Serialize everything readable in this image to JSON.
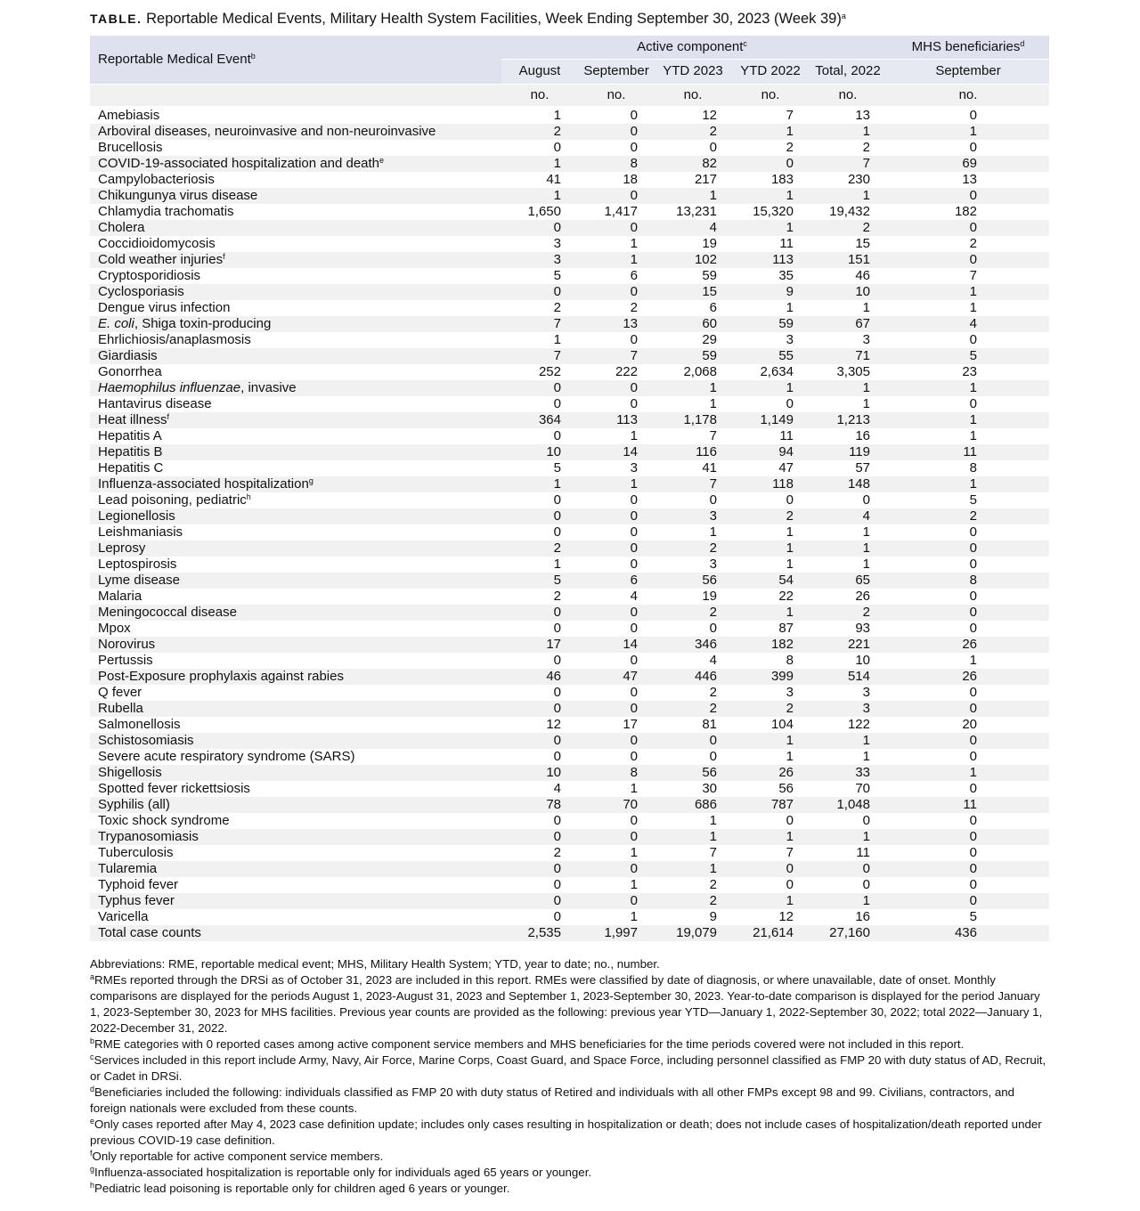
{
  "title": {
    "prefix": "TABLE.",
    "text": "Reportable Medical Events, Military Health System Facilities, Week Ending September 30, 2023 (Week 39)",
    "note": "a"
  },
  "header": {
    "label": "Reportable Medical Event",
    "label_note": "b",
    "groups": [
      {
        "label": "Active component",
        "note": "c"
      },
      {
        "label": "MHS beneficiaries",
        "note": "d"
      }
    ],
    "columns": [
      "August",
      "September",
      "YTD 2023",
      "YTD 2022",
      "Total, 2022",
      "September"
    ],
    "units": [
      "no.",
      "no.",
      "no.",
      "no.",
      "no.",
      "no."
    ]
  },
  "rows": [
    {
      "name": "Amebiasis",
      "values": [
        "1",
        "0",
        "12",
        "7",
        "13",
        "0"
      ]
    },
    {
      "name": "Arboviral diseases, neuroinvasive and non-neuroinvasive",
      "values": [
        "2",
        "0",
        "2",
        "1",
        "1",
        "1"
      ]
    },
    {
      "name": "Brucellosis",
      "values": [
        "0",
        "0",
        "0",
        "2",
        "2",
        "0"
      ]
    },
    {
      "name": "COVID-19-associated hospitalization and death",
      "note": "e",
      "values": [
        "1",
        "8",
        "82",
        "0",
        "7",
        "69"
      ]
    },
    {
      "name": "Campylobacteriosis",
      "values": [
        "41",
        "18",
        "217",
        "183",
        "230",
        "13"
      ]
    },
    {
      "name": "Chikungunya virus disease",
      "values": [
        "1",
        "0",
        "1",
        "1",
        "1",
        "0"
      ]
    },
    {
      "name": "Chlamydia trachomatis",
      "values": [
        "1,650",
        "1,417",
        "13,231",
        "15,320",
        "19,432",
        "182"
      ]
    },
    {
      "name": "Cholera",
      "values": [
        "0",
        "0",
        "4",
        "1",
        "2",
        "0"
      ]
    },
    {
      "name": "Coccidioidomycosis",
      "values": [
        "3",
        "1",
        "19",
        "11",
        "15",
        "2"
      ]
    },
    {
      "name": "Cold weather injuries",
      "note": "f",
      "values": [
        "3",
        "1",
        "102",
        "113",
        "151",
        "0"
      ]
    },
    {
      "name": "Cryptosporidiosis",
      "values": [
        "5",
        "6",
        "59",
        "35",
        "46",
        "7"
      ]
    },
    {
      "name": "Cyclosporiasis",
      "values": [
        "0",
        "0",
        "15",
        "9",
        "10",
        "1"
      ]
    },
    {
      "name": "Dengue virus infection",
      "values": [
        "2",
        "2",
        "6",
        "1",
        "1",
        "1"
      ]
    },
    {
      "italic": "E. coli",
      "name": ", Shiga toxin-producing",
      "values": [
        "7",
        "13",
        "60",
        "59",
        "67",
        "4"
      ]
    },
    {
      "name": "Ehrlichiosis/anaplasmosis",
      "values": [
        "1",
        "0",
        "29",
        "3",
        "3",
        "0"
      ]
    },
    {
      "name": "Giardiasis",
      "values": [
        "7",
        "7",
        "59",
        "55",
        "71",
        "5"
      ]
    },
    {
      "name": "Gonorrhea",
      "values": [
        "252",
        "222",
        "2,068",
        "2,634",
        "3,305",
        "23"
      ]
    },
    {
      "italic": "Haemophilus influenzae",
      "name": ", invasive",
      "values": [
        "0",
        "0",
        "1",
        "1",
        "1",
        "1"
      ]
    },
    {
      "name": "Hantavirus disease",
      "values": [
        "0",
        "0",
        "1",
        "0",
        "1",
        "0"
      ]
    },
    {
      "name": "Heat illness",
      "note": "f",
      "values": [
        "364",
        "113",
        "1,178",
        "1,149",
        "1,213",
        "1"
      ]
    },
    {
      "name": "Hepatitis A",
      "values": [
        "0",
        "1",
        "7",
        "11",
        "16",
        "1"
      ]
    },
    {
      "name": "Hepatitis B",
      "values": [
        "10",
        "14",
        "116",
        "94",
        "119",
        "11"
      ]
    },
    {
      "name": "Hepatitis C",
      "values": [
        "5",
        "3",
        "41",
        "47",
        "57",
        "8"
      ]
    },
    {
      "name": "Influenza-associated hospitalization",
      "note": "g",
      "values": [
        "1",
        "1",
        "7",
        "118",
        "148",
        "1"
      ]
    },
    {
      "name": "Lead poisoning, pediatric",
      "note": "h",
      "values": [
        "0",
        "0",
        "0",
        "0",
        "0",
        "5"
      ]
    },
    {
      "name": "Legionellosis",
      "values": [
        "0",
        "0",
        "3",
        "2",
        "4",
        "2"
      ]
    },
    {
      "name": "Leishmaniasis",
      "values": [
        "0",
        "0",
        "1",
        "1",
        "1",
        "0"
      ]
    },
    {
      "name": "Leprosy",
      "values": [
        "2",
        "0",
        "2",
        "1",
        "1",
        "0"
      ]
    },
    {
      "name": "Leptospirosis",
      "values": [
        "1",
        "0",
        "3",
        "1",
        "1",
        "0"
      ]
    },
    {
      "name": "Lyme disease",
      "values": [
        "5",
        "6",
        "56",
        "54",
        "65",
        "8"
      ]
    },
    {
      "name": "Malaria",
      "values": [
        "2",
        "4",
        "19",
        "22",
        "26",
        "0"
      ]
    },
    {
      "name": "Meningococcal disease",
      "values": [
        "0",
        "0",
        "2",
        "1",
        "2",
        "0"
      ]
    },
    {
      "name": "Mpox",
      "values": [
        "0",
        "0",
        "0",
        "87",
        "93",
        "0"
      ]
    },
    {
      "name": "Norovirus",
      "values": [
        "17",
        "14",
        "346",
        "182",
        "221",
        "26"
      ]
    },
    {
      "name": "Pertussis",
      "values": [
        "0",
        "0",
        "4",
        "8",
        "10",
        "1"
      ]
    },
    {
      "name": "Post-Exposure prophylaxis against rabies",
      "values": [
        "46",
        "47",
        "446",
        "399",
        "514",
        "26"
      ]
    },
    {
      "name": "Q fever",
      "values": [
        "0",
        "0",
        "2",
        "3",
        "3",
        "0"
      ]
    },
    {
      "name": "Rubella",
      "values": [
        "0",
        "0",
        "2",
        "2",
        "3",
        "0"
      ]
    },
    {
      "name": "Salmonellosis",
      "values": [
        "12",
        "17",
        "81",
        "104",
        "122",
        "20"
      ]
    },
    {
      "name": "Schistosomiasis",
      "values": [
        "0",
        "0",
        "0",
        "1",
        "1",
        "0"
      ]
    },
    {
      "name": "Severe acute respiratory syndrome (SARS)",
      "values": [
        "0",
        "0",
        "0",
        "1",
        "1",
        "0"
      ]
    },
    {
      "name": "Shigellosis",
      "values": [
        "10",
        "8",
        "56",
        "26",
        "33",
        "1"
      ]
    },
    {
      "name": "Spotted fever rickettsiosis",
      "values": [
        "4",
        "1",
        "30",
        "56",
        "70",
        "0"
      ]
    },
    {
      "name": "Syphilis (all)",
      "values": [
        "78",
        "70",
        "686",
        "787",
        "1,048",
        "11"
      ]
    },
    {
      "name": "Toxic shock syndrome",
      "values": [
        "0",
        "0",
        "1",
        "0",
        "0",
        "0"
      ]
    },
    {
      "name": "Trypanosomiasis",
      "values": [
        "0",
        "0",
        "1",
        "1",
        "1",
        "0"
      ]
    },
    {
      "name": "Tuberculosis",
      "values": [
        "2",
        "1",
        "7",
        "7",
        "11",
        "0"
      ]
    },
    {
      "name": "Tularemia",
      "values": [
        "0",
        "0",
        "1",
        "0",
        "0",
        "0"
      ]
    },
    {
      "name": "Typhoid fever",
      "values": [
        "0",
        "1",
        "2",
        "0",
        "0",
        "0"
      ]
    },
    {
      "name": "Typhus fever",
      "values": [
        "0",
        "0",
        "2",
        "1",
        "1",
        "0"
      ]
    },
    {
      "name": "Varicella",
      "values": [
        "0",
        "1",
        "9",
        "12",
        "16",
        "5"
      ]
    },
    {
      "name": "Total case counts",
      "values": [
        "2,535",
        "1,997",
        "19,079",
        "21,614",
        "27,160",
        "436"
      ]
    }
  ],
  "footnotes": [
    {
      "text": "Abbreviations: RME, reportable medical event; MHS, Military Health System; YTD, year to date; no., number."
    },
    {
      "mark": "a",
      "text": "RMEs reported through the DRSi as of October 31, 2023 are included in this report. RMEs were classified by date of diagnosis, or where unavailable, date of onset. Monthly comparisons are displayed for the periods August 1, 2023-August 31, 2023 and September 1, 2023-September 30, 2023. Year-to-date comparison is displayed for the period January 1, 2023-September 30, 2023 for MHS facilities. Previous year counts are provided as the following: previous year YTD—January 1, 2022-September 30, 2022; total 2022—January 1, 2022-December 31, 2022."
    },
    {
      "mark": "b",
      "text": "RME categories with 0 reported cases among active component service members and MHS beneficiaries for the time periods covered were not included in this report."
    },
    {
      "mark": "c",
      "text": "Services included in this report include Army, Navy, Air Force, Marine Corps, Coast Guard, and Space Force, including personnel classified as FMP 20 with duty status of AD, Recruit, or Cadet in DRSi."
    },
    {
      "mark": "d",
      "text": "Beneficiaries included the following: individuals classified as FMP 20 with duty status of Retired and individuals with all other FMPs except 98 and 99. Civilians, contractors, and foreign nationals were excluded from these counts."
    },
    {
      "mark": "e",
      "text": "Only cases reported after May 4, 2023 case definition update; includes only cases resulting in hospitalization or death; does not include cases of hospitalization/death reported under previous COVID-19 case definition."
    },
    {
      "mark": "f",
      "text": "Only reportable for active component service members."
    },
    {
      "mark": "g",
      "text": "Influenza-associated hospitalization is reportable only for individuals aged 65 years or younger."
    },
    {
      "mark": "h",
      "text": "Pediatric lead poisoning is reportable only for children aged 6 years or younger."
    }
  ]
}
